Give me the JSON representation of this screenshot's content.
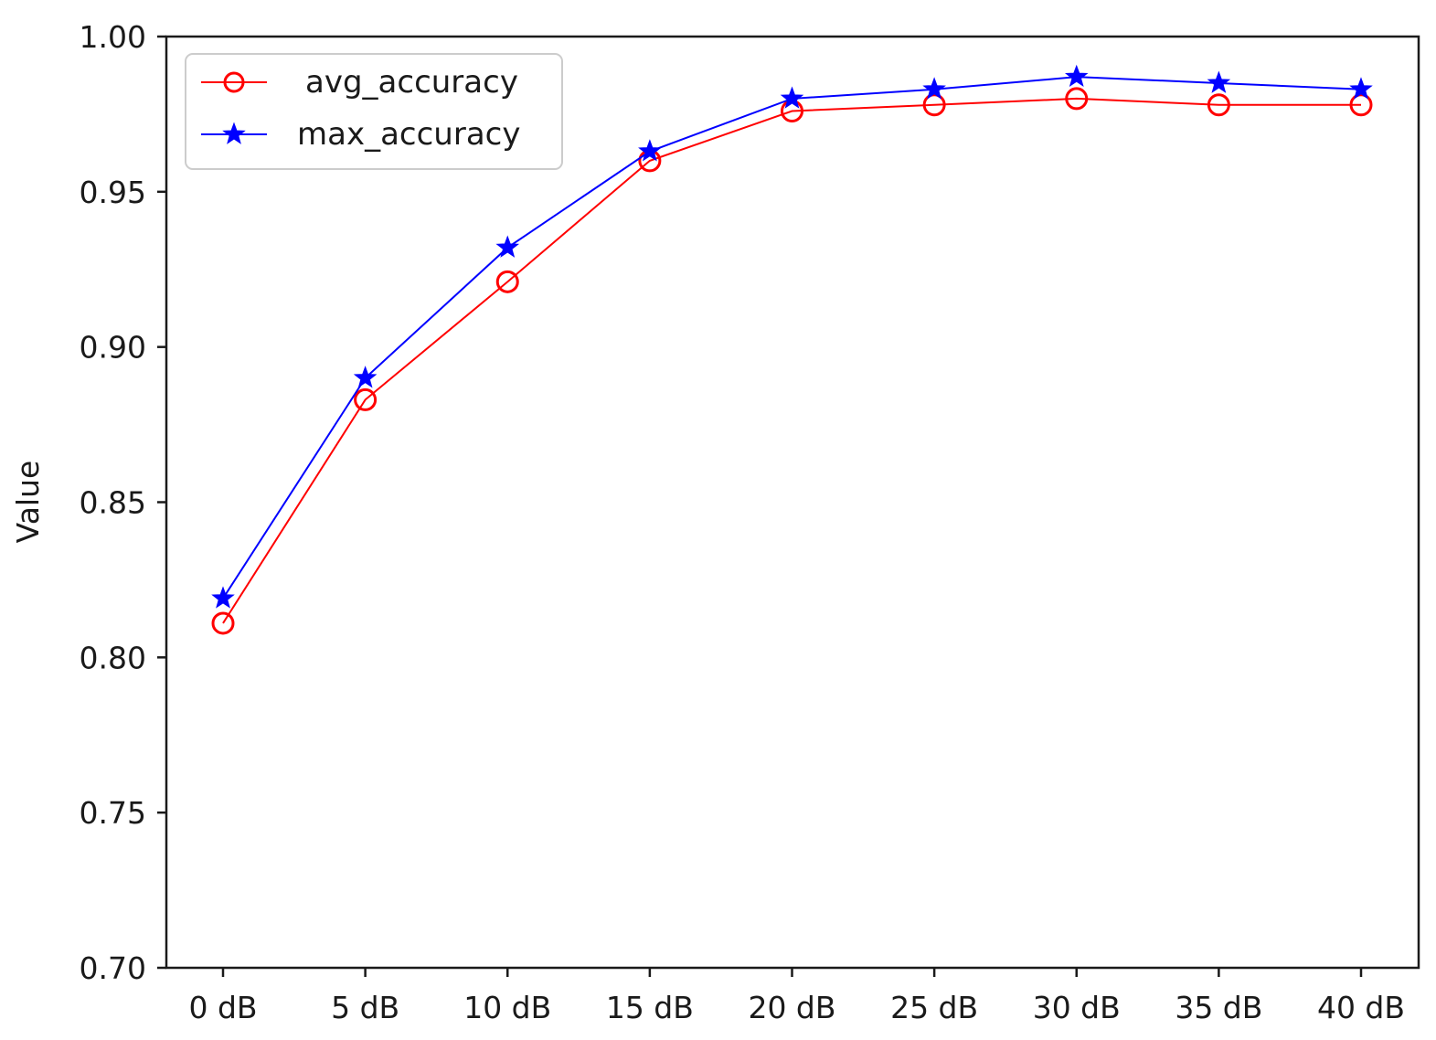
{
  "chart_data": {
    "type": "line",
    "title": "",
    "xlabel": "",
    "ylabel": "Value",
    "categories": [
      "0 dB",
      "5 dB",
      "10 dB",
      "15 dB",
      "20 dB",
      "25 dB",
      "30 dB",
      "35 dB",
      "40 dB"
    ],
    "ylim": [
      0.7,
      1.0
    ],
    "yticks": [
      "0.70",
      "0.75",
      "0.80",
      "0.85",
      "0.90",
      "0.95",
      "1.00"
    ],
    "grid": false,
    "legend_position": "top-left",
    "series": [
      {
        "name": "avg_accuracy",
        "color": "#ff0000",
        "marker": "circle",
        "values": [
          0.811,
          0.883,
          0.921,
          0.96,
          0.976,
          0.978,
          0.98,
          0.978,
          0.978
        ]
      },
      {
        "name": "max_accuracy",
        "color": "#0000ff",
        "marker": "star",
        "values": [
          0.819,
          0.89,
          0.932,
          0.963,
          0.98,
          0.983,
          0.987,
          0.985,
          0.983
        ]
      }
    ]
  }
}
